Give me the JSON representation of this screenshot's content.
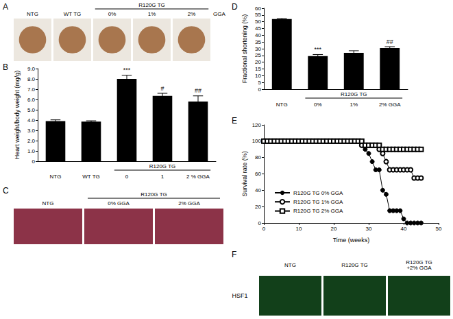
{
  "image_panels": [
    {
      "panel": "A",
      "labels": [
        "NTG",
        "WT TG",
        "0%",
        "1%",
        "2%"
      ],
      "group": {
        "label": "R120G TG",
        "columns": [
          "0%",
          "1%",
          "2%"
        ]
      },
      "suffix": "GGA"
    },
    {
      "panel": "C",
      "labels": [
        "NTG",
        "0% GGA",
        "2% GGA"
      ],
      "group": {
        "label": "R120G TG",
        "columns": [
          "0% GGA",
          "2% GGA"
        ]
      }
    },
    {
      "panel": "F",
      "labels": [
        "NTG",
        "R120G TG",
        "R120G TG\n+2% GGA"
      ],
      "row_label": "HSF1"
    }
  ],
  "chart_data": [
    {
      "panel": "B",
      "type": "bar",
      "ylabel": "Heart weight/body weight (mg/g)",
      "categories": [
        "NTG",
        "WT TG",
        "0",
        "1",
        "2 % GGA"
      ],
      "values": [
        3.9,
        3.85,
        8.0,
        6.35,
        5.8
      ],
      "errors": [
        0.12,
        0.08,
        0.35,
        0.25,
        0.55
      ],
      "color": "#000000",
      "ylim": [
        0,
        9
      ],
      "yticks": [
        0,
        {
          "value": 1,
          "label": "1.0"
        },
        {
          "value": 2,
          "label": "2.0"
        },
        {
          "value": 3,
          "label": "3.0"
        },
        {
          "value": 4,
          "label": "4.0"
        },
        {
          "value": 5,
          "label": "5.0"
        },
        {
          "value": 6,
          "label": "6.0"
        },
        {
          "value": 7,
          "label": "7.0"
        },
        {
          "value": 8,
          "label": "8.0"
        },
        {
          "value": 9,
          "label": "9.0"
        }
      ],
      "groups": [
        {
          "label": "R120G TG",
          "categories": [
            "0",
            "1",
            "2 % GGA"
          ]
        }
      ],
      "annotations": [
        {
          "category": "0",
          "text": "***"
        },
        {
          "category": "1",
          "text": "#"
        },
        {
          "category": "2 % GGA",
          "text": "##"
        }
      ],
      "grid": false
    },
    {
      "panel": "D",
      "type": "bar",
      "ylabel": "Fractional shortening (%)",
      "categories": [
        "NTG",
        "0%",
        "1%",
        "2% GGA"
      ],
      "values": [
        52,
        24.5,
        27,
        30.5
      ],
      "errors": [
        0.4,
        1.2,
        1.5,
        1.0
      ],
      "color": "#000000",
      "ylim": [
        0,
        60
      ],
      "yticks": [
        0,
        5,
        10,
        15,
        20,
        25,
        30,
        35,
        40,
        45,
        50,
        55,
        60
      ],
      "groups": [
        {
          "label": "R120G TG",
          "categories": [
            "0%",
            "1%",
            "2% GGA"
          ]
        }
      ],
      "annotations": [
        {
          "category": "0%",
          "text": "***"
        },
        {
          "category": "2% GGA",
          "text": "##"
        }
      ],
      "grid": false
    },
    {
      "panel": "E",
      "type": "line",
      "xlabel": "Time (weeks)",
      "ylabel": "Survival rate (%)",
      "x": [
        0,
        1,
        2,
        3,
        4,
        5,
        6,
        7,
        8,
        9,
        10,
        11,
        12,
        13,
        14,
        15,
        16,
        17,
        18,
        19,
        20,
        21,
        22,
        23,
        24,
        25,
        26,
        27,
        28,
        29,
        30,
        31,
        32,
        33,
        34,
        35,
        36,
        37,
        38,
        39,
        40,
        41,
        42,
        43,
        44,
        45
      ],
      "series": [
        {
          "name": "R120G TG 0% GGA",
          "color": "#000000",
          "marker": "filled_circle",
          "values": [
            100,
            100,
            100,
            100,
            100,
            100,
            100,
            100,
            100,
            100,
            100,
            100,
            100,
            100,
            100,
            100,
            100,
            100,
            100,
            100,
            100,
            100,
            100,
            100,
            100,
            100,
            100,
            100,
            95,
            90,
            85,
            75,
            65,
            65,
            40,
            35,
            15,
            15,
            15,
            15,
            5,
            0,
            0,
            0,
            0,
            0
          ]
        },
        {
          "name": "R120G TG 1% GGA",
          "color": "#000000",
          "marker": "open_circle",
          "values": [
            100,
            100,
            100,
            100,
            100,
            100,
            100,
            100,
            100,
            100,
            100,
            100,
            100,
            100,
            100,
            100,
            100,
            100,
            100,
            100,
            100,
            100,
            100,
            100,
            100,
            100,
            100,
            100,
            95,
            95,
            95,
            95,
            95,
            90,
            85,
            75,
            65,
            65,
            65,
            65,
            65,
            65,
            65,
            55,
            55,
            55
          ]
        },
        {
          "name": "R120G TG 2% GGA",
          "color": "#000000",
          "marker": "open_square",
          "values": [
            100,
            100,
            100,
            100,
            100,
            100,
            100,
            100,
            100,
            100,
            100,
            100,
            100,
            100,
            100,
            100,
            100,
            100,
            100,
            100,
            100,
            100,
            100,
            100,
            100,
            100,
            100,
            100,
            100,
            95,
            95,
            95,
            95,
            95,
            90,
            90,
            90,
            90,
            90,
            90,
            90,
            90,
            90,
            90,
            90,
            90
          ]
        }
      ],
      "xlim": [
        0,
        50
      ],
      "xticks": [
        0,
        10,
        20,
        30,
        40,
        50
      ],
      "ylim": [
        0,
        120
      ],
      "yticks": [
        0,
        20,
        40,
        60,
        80,
        100,
        120
      ],
      "legend": "lower left",
      "grid": false
    }
  ]
}
